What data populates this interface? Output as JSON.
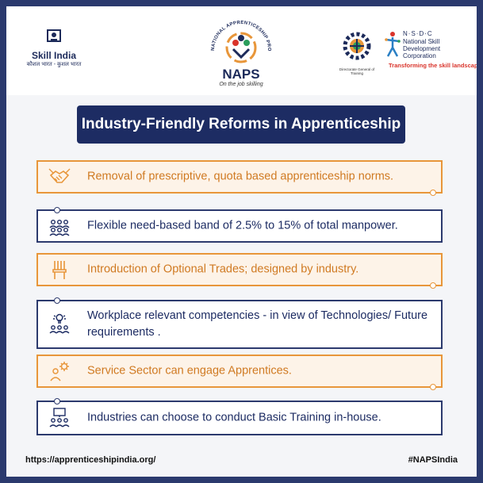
{
  "header": {
    "skill_india": {
      "title": "Skill India",
      "subtitle": "कौशल भारत - कुशल भारत"
    },
    "naps": {
      "arc_text": "NATIONAL APPRENTICESHIP PROMOTION SCHEME",
      "word": "NAPS",
      "tagline": "On the job skilling"
    },
    "dgt": {
      "caption": "Directorate General of Training"
    },
    "nsdc": {
      "acronym": "N·S·D·C",
      "name": "National Skill Development Corporation",
      "tagline": "Transforming the skill landscape"
    }
  },
  "title": "Industry-Friendly Reforms in Apprenticeship",
  "items": [
    {
      "text": "Removal of prescriptive, quota based apprenticeship norms.",
      "icon": "handshake-icon",
      "style": "orange"
    },
    {
      "text": "Flexible need-based band of 2.5% to 15% of total manpower.",
      "icon": "people-group-icon",
      "style": "blue"
    },
    {
      "text": "Introduction of Optional Trades; designed by industry.",
      "icon": "chair-icon",
      "style": "orange"
    },
    {
      "text": "Workplace relevant  competencies - in view of Technologies/ Future requirements .",
      "icon": "lightbulb-team-icon",
      "style": "blue"
    },
    {
      "text": "Service Sector can engage Apprentices.",
      "icon": "person-gear-icon",
      "style": "orange"
    },
    {
      "text": "Industries can choose to conduct Basic Training in-house.",
      "icon": "training-board-icon",
      "style": "blue"
    }
  ],
  "footer": {
    "url": "https://apprenticeshipindia.org/",
    "hashtag": "#NAPSIndia"
  },
  "colors": {
    "navy": "#1d2c63",
    "orange": "#e8963a",
    "orange_text": "#d07a22",
    "border_frame": "#2b3a6e"
  }
}
